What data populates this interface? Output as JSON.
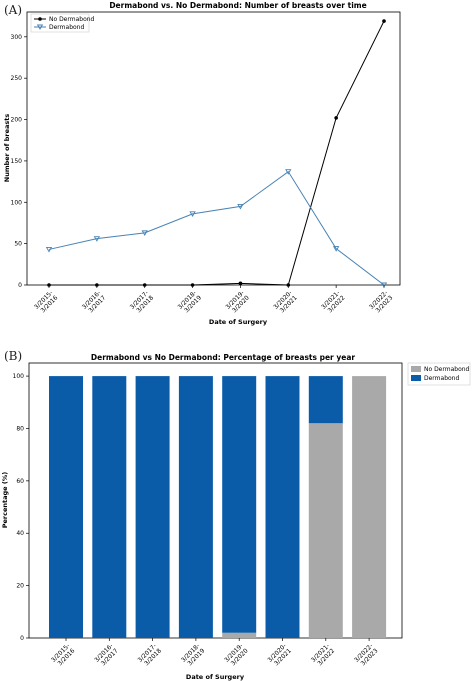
{
  "figure": {
    "label_a": "(A)",
    "label_b": "(B)"
  },
  "chart_data": [
    {
      "type": "line",
      "title": "Dermabond vs. No Dermabond: Number of breasts over time",
      "xlabel": "Date of Surgery",
      "ylabel": "Number of breasts",
      "categories": [
        "3/2015-\n3/2016",
        "3/2016-\n3/2017",
        "3/2017-\n3/2018",
        "3/2018-\n3/2019",
        "3/2019-\n3/2020",
        "3/2020-\n3/2021",
        "3/2021-\n3/2022",
        "3/2022-\n3/2023"
      ],
      "ylim": [
        0,
        330
      ],
      "yticks": [
        0,
        50,
        100,
        150,
        200,
        250,
        300
      ],
      "grid": false,
      "legend_position": "top-left",
      "series": [
        {
          "name": "No Dermabond",
          "color": "#000000",
          "marker": "circle",
          "values": [
            0,
            0,
            0,
            0,
            2,
            0,
            202,
            319
          ]
        },
        {
          "name": "Dermabond",
          "color": "#4682b4",
          "marker": "triangle-down",
          "values": [
            43,
            56,
            63,
            86,
            95,
            137,
            44,
            0
          ]
        }
      ]
    },
    {
      "type": "bar",
      "stacked": true,
      "title": "Dermabond vs No Dermabond: Percentage of breasts per year",
      "xlabel": "Date of Surgery",
      "ylabel": "Percentage (%)",
      "categories": [
        "3/2015-\n3/2016",
        "3/2016-\n3/2017",
        "3/2017-\n3/2018",
        "3/2018-\n3/2019",
        "3/2019-\n3/2020",
        "3/2020-\n3/2021",
        "3/2021-\n3/2022",
        "3/2022-\n3/2023"
      ],
      "ylim": [
        0,
        105
      ],
      "yticks": [
        0,
        20,
        40,
        60,
        80,
        100
      ],
      "grid": false,
      "legend_position": "outside-top-right",
      "series": [
        {
          "name": "No Dermabond",
          "color": "#a9a9a9",
          "values": [
            0,
            0,
            0,
            0,
            2,
            0,
            82,
            100
          ]
        },
        {
          "name": "Dermabond",
          "color": "#0a5ca8",
          "values": [
            100,
            100,
            100,
            100,
            98,
            100,
            18,
            0
          ]
        }
      ]
    }
  ]
}
